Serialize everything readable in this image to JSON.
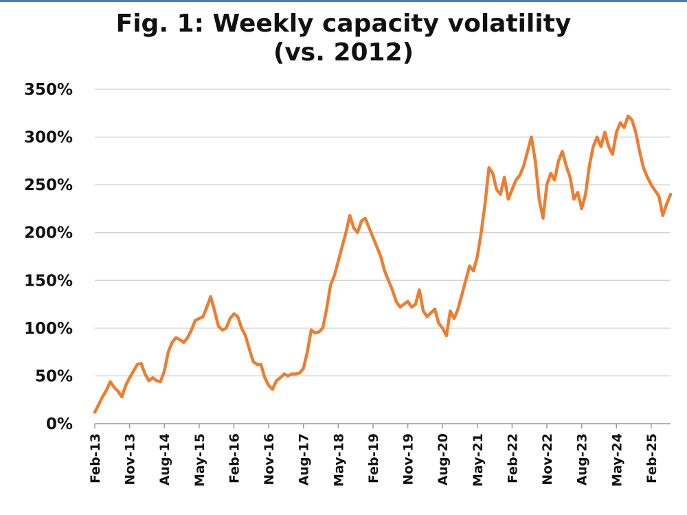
{
  "colors": {
    "line": "#ED7D31",
    "grid": "#D4D4D4",
    "axis": "#9A9A9A",
    "text": "#111111",
    "top_rule": "#4A7EBB"
  },
  "chart_data": {
    "type": "line",
    "title": "Fig. 1: Weekly capacity volatility",
    "subtitle": "(vs. 2012)",
    "xlabel": "",
    "ylabel": "",
    "x_range": [
      "2013-02",
      "2025-07"
    ],
    "ylim": [
      0,
      350
    ],
    "y_unit": "%",
    "grid": "horizontal",
    "legend": "none",
    "y_ticks": [
      "0%",
      "50%",
      "100%",
      "150%",
      "200%",
      "250%",
      "300%",
      "350%"
    ],
    "x_ticks": [
      {
        "label": "Feb-13",
        "date": "2013-02"
      },
      {
        "label": "Nov-13",
        "date": "2013-11"
      },
      {
        "label": "Aug-14",
        "date": "2014-08"
      },
      {
        "label": "May-15",
        "date": "2015-05"
      },
      {
        "label": "Feb-16",
        "date": "2016-02"
      },
      {
        "label": "Nov-16",
        "date": "2016-11"
      },
      {
        "label": "Aug-17",
        "date": "2017-08"
      },
      {
        "label": "May-18",
        "date": "2018-05"
      },
      {
        "label": "Feb-19",
        "date": "2019-02"
      },
      {
        "label": "Nov-19",
        "date": "2019-11"
      },
      {
        "label": "Aug-20",
        "date": "2020-08"
      },
      {
        "label": "May-21",
        "date": "2021-05"
      },
      {
        "label": "Feb-22",
        "date": "2022-02"
      },
      {
        "label": "Nov-22",
        "date": "2022-11"
      },
      {
        "label": "Aug-23",
        "date": "2023-08"
      },
      {
        "label": "May-24",
        "date": "2024-05"
      },
      {
        "label": "Feb-25",
        "date": "2025-02"
      }
    ],
    "series": [
      {
        "name": "",
        "points": [
          [
            "2013-02",
            12
          ],
          [
            "2013-03",
            20
          ],
          [
            "2013-04",
            28
          ],
          [
            "2013-05",
            35
          ],
          [
            "2013-06",
            44
          ],
          [
            "2013-07",
            38
          ],
          [
            "2013-08",
            34
          ],
          [
            "2013-09",
            28
          ],
          [
            "2013-10",
            40
          ],
          [
            "2013-11",
            48
          ],
          [
            "2013-12",
            55
          ],
          [
            "2014-01",
            62
          ],
          [
            "2014-02",
            63
          ],
          [
            "2014-03",
            52
          ],
          [
            "2014-04",
            45
          ],
          [
            "2014-05",
            48
          ],
          [
            "2014-06",
            45
          ],
          [
            "2014-07",
            44
          ],
          [
            "2014-08",
            55
          ],
          [
            "2014-09",
            75
          ],
          [
            "2014-10",
            85
          ],
          [
            "2014-11",
            90
          ],
          [
            "2014-12",
            88
          ],
          [
            "2015-01",
            85
          ],
          [
            "2015-02",
            90
          ],
          [
            "2015-03",
            98
          ],
          [
            "2015-04",
            108
          ],
          [
            "2015-05",
            110
          ],
          [
            "2015-06",
            112
          ],
          [
            "2015-07",
            122
          ],
          [
            "2015-08",
            133
          ],
          [
            "2015-09",
            118
          ],
          [
            "2015-10",
            102
          ],
          [
            "2015-11",
            98
          ],
          [
            "2015-12",
            100
          ],
          [
            "2016-01",
            110
          ],
          [
            "2016-02",
            115
          ],
          [
            "2016-03",
            112
          ],
          [
            "2016-04",
            100
          ],
          [
            "2016-05",
            92
          ],
          [
            "2016-06",
            78
          ],
          [
            "2016-07",
            65
          ],
          [
            "2016-08",
            62
          ],
          [
            "2016-09",
            62
          ],
          [
            "2016-10",
            48
          ],
          [
            "2016-11",
            40
          ],
          [
            "2016-12",
            36
          ],
          [
            "2017-01",
            45
          ],
          [
            "2017-02",
            48
          ],
          [
            "2017-03",
            52
          ],
          [
            "2017-04",
            50
          ],
          [
            "2017-05",
            52
          ],
          [
            "2017-06",
            52
          ],
          [
            "2017-07",
            53
          ],
          [
            "2017-08",
            58
          ],
          [
            "2017-09",
            75
          ],
          [
            "2017-10",
            98
          ],
          [
            "2017-11",
            95
          ],
          [
            "2017-12",
            96
          ],
          [
            "2018-01",
            100
          ],
          [
            "2018-02",
            120
          ],
          [
            "2018-03",
            145
          ],
          [
            "2018-04",
            155
          ],
          [
            "2018-05",
            170
          ],
          [
            "2018-06",
            185
          ],
          [
            "2018-07",
            200
          ],
          [
            "2018-08",
            218
          ],
          [
            "2018-09",
            205
          ],
          [
            "2018-10",
            200
          ],
          [
            "2018-11",
            212
          ],
          [
            "2018-12",
            215
          ],
          [
            "2019-01",
            205
          ],
          [
            "2019-02",
            195
          ],
          [
            "2019-03",
            185
          ],
          [
            "2019-04",
            175
          ],
          [
            "2019-05",
            160
          ],
          [
            "2019-06",
            150
          ],
          [
            "2019-07",
            140
          ],
          [
            "2019-08",
            128
          ],
          [
            "2019-09",
            122
          ],
          [
            "2019-10",
            125
          ],
          [
            "2019-11",
            128
          ],
          [
            "2019-12",
            122
          ],
          [
            "2020-01",
            125
          ],
          [
            "2020-02",
            140
          ],
          [
            "2020-03",
            118
          ],
          [
            "2020-04",
            112
          ],
          [
            "2020-05",
            116
          ],
          [
            "2020-06",
            120
          ],
          [
            "2020-07",
            105
          ],
          [
            "2020-08",
            100
          ],
          [
            "2020-09",
            92
          ],
          [
            "2020-10",
            118
          ],
          [
            "2020-11",
            110
          ],
          [
            "2020-12",
            120
          ],
          [
            "2021-01",
            135
          ],
          [
            "2021-02",
            150
          ],
          [
            "2021-03",
            165
          ],
          [
            "2021-04",
            160
          ],
          [
            "2021-05",
            175
          ],
          [
            "2021-06",
            200
          ],
          [
            "2021-07",
            230
          ],
          [
            "2021-08",
            268
          ],
          [
            "2021-09",
            262
          ],
          [
            "2021-10",
            245
          ],
          [
            "2021-11",
            240
          ],
          [
            "2021-12",
            258
          ],
          [
            "2022-01",
            235
          ],
          [
            "2022-02",
            245
          ],
          [
            "2022-03",
            255
          ],
          [
            "2022-04",
            260
          ],
          [
            "2022-05",
            270
          ],
          [
            "2022-06",
            285
          ],
          [
            "2022-07",
            300
          ],
          [
            "2022-08",
            275
          ],
          [
            "2022-09",
            235
          ],
          [
            "2022-10",
            215
          ],
          [
            "2022-11",
            250
          ],
          [
            "2022-12",
            262
          ],
          [
            "2023-01",
            255
          ],
          [
            "2023-02",
            275
          ],
          [
            "2023-03",
            285
          ],
          [
            "2023-04",
            270
          ],
          [
            "2023-05",
            258
          ],
          [
            "2023-06",
            235
          ],
          [
            "2023-07",
            242
          ],
          [
            "2023-08",
            225
          ],
          [
            "2023-09",
            240
          ],
          [
            "2023-10",
            270
          ],
          [
            "2023-11",
            290
          ],
          [
            "2023-12",
            300
          ],
          [
            "2024-01",
            290
          ],
          [
            "2024-02",
            305
          ],
          [
            "2024-03",
            290
          ],
          [
            "2024-04",
            282
          ],
          [
            "2024-05",
            305
          ],
          [
            "2024-06",
            315
          ],
          [
            "2024-07",
            310
          ],
          [
            "2024-08",
            322
          ],
          [
            "2024-09",
            318
          ],
          [
            "2024-10",
            305
          ],
          [
            "2024-11",
            285
          ],
          [
            "2024-12",
            268
          ],
          [
            "2025-01",
            258
          ],
          [
            "2025-02",
            250
          ],
          [
            "2025-03",
            244
          ],
          [
            "2025-04",
            238
          ],
          [
            "2025-05",
            218
          ],
          [
            "2025-06",
            230
          ],
          [
            "2025-07",
            240
          ]
        ]
      }
    ]
  }
}
